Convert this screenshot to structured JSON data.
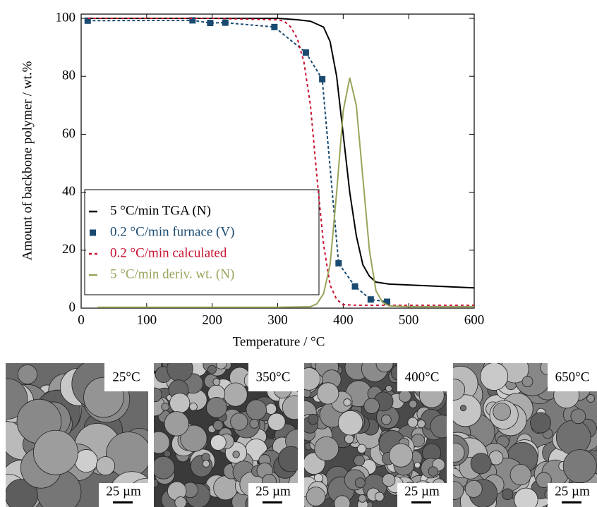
{
  "chart_data": {
    "type": "line",
    "xlabel": "Temperature / °C",
    "ylabel": "Amount of backbone polymer / wt.%",
    "xlim": [
      0,
      600
    ],
    "xticks": [
      0,
      100,
      200,
      300,
      400,
      500,
      600
    ],
    "ylim": [
      0,
      100
    ],
    "yticks": [
      0,
      20,
      40,
      60,
      80,
      100
    ],
    "legend": "lower left",
    "series": [
      {
        "name": "5 °C/min TGA  (N)",
        "color": "#000000",
        "style": "solid",
        "x": [
          10,
          100,
          200,
          300,
          330,
          350,
          370,
          380,
          390,
          400,
          410,
          420,
          430,
          440,
          450,
          470,
          500,
          600
        ],
        "values": [
          100,
          100,
          100,
          100,
          99.5,
          99,
          97,
          92,
          80,
          60,
          40,
          25,
          15,
          11,
          9,
          8.3,
          8,
          7
        ]
      },
      {
        "name": "0.2 °C/min furnace (V)",
        "color": "#1a4a70",
        "style": "dashed",
        "marker": "square",
        "x": [
          10,
          170,
          197,
          220,
          295,
          343,
          368,
          393,
          418,
          442,
          467
        ],
        "values": [
          99.2,
          99.3,
          98.4,
          98.5,
          97,
          88.2,
          79,
          15.5,
          7.5,
          3,
          2.2
        ]
      },
      {
        "name": "0.2 °C/min calculated",
        "color": "#c8102e",
        "style": "dotted",
        "x": [
          10,
          200,
          300,
          310,
          320,
          330,
          340,
          350,
          360,
          370,
          380,
          390,
          400,
          420,
          600
        ],
        "values": [
          100,
          100,
          99.5,
          99,
          97,
          93,
          85,
          70,
          45,
          22,
          8,
          3,
          1.2,
          1,
          1
        ]
      },
      {
        "name": "5 °C/min deriv. wt. (N)",
        "color": "#9aa35a",
        "style": "solid",
        "x": [
          25,
          100,
          200,
          300,
          350,
          360,
          370,
          380,
          390,
          400,
          410,
          420,
          430,
          440,
          450,
          460,
          470,
          500,
          600
        ],
        "values": [
          0.3,
          0.3,
          0.3,
          0.3,
          0.5,
          1.5,
          5,
          15,
          40,
          68,
          79.5,
          70,
          45,
          20,
          6,
          2,
          0.8,
          0.5,
          0.5
        ]
      }
    ]
  },
  "panels": [
    {
      "label": "25°C",
      "scale_bar": "25 µm"
    },
    {
      "label": "350°C",
      "scale_bar": "25 µm"
    },
    {
      "label": "400°C",
      "scale_bar": "25 µm"
    },
    {
      "label": "650°C",
      "scale_bar": "25 µm"
    }
  ]
}
